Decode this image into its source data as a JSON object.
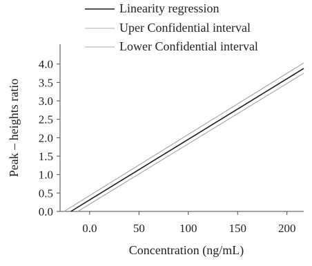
{
  "chart_data": {
    "type": "line",
    "title": "",
    "xlabel": "Concentration    (ng/mL)",
    "ylabel": "Peak – heights ratio",
    "xlim": [
      -30,
      217
    ],
    "ylim": [
      0,
      4.35
    ],
    "x_ticks": [
      0,
      50,
      100,
      150,
      200
    ],
    "x_tick_labels": [
      "0.0",
      "50",
      "100",
      "150",
      "200"
    ],
    "y_ticks": [
      0,
      0.5,
      1,
      1.5,
      2,
      2.5,
      3,
      3.5,
      4
    ],
    "y_tick_labels": [
      "0.0",
      "0.5",
      "1.0",
      "1.5",
      "2.0",
      "2.5",
      "3.0",
      "3.5",
      "4.0"
    ],
    "grid": false,
    "legend_position": "top",
    "series": [
      {
        "name": "Linearity regression",
        "color": "#1a1a1a",
        "x": [
          -19,
          217
        ],
        "y": [
          0,
          3.88
        ]
      },
      {
        "name": "Uper Confidential interval",
        "color": "#a8a8a8",
        "x": [
          -26,
          217
        ],
        "y": [
          0,
          4.03
        ]
      },
      {
        "name": "Lower  Confidential interval",
        "color": "#a8a8a8",
        "x": [
          -12,
          217
        ],
        "y": [
          0,
          3.75
        ]
      }
    ]
  }
}
